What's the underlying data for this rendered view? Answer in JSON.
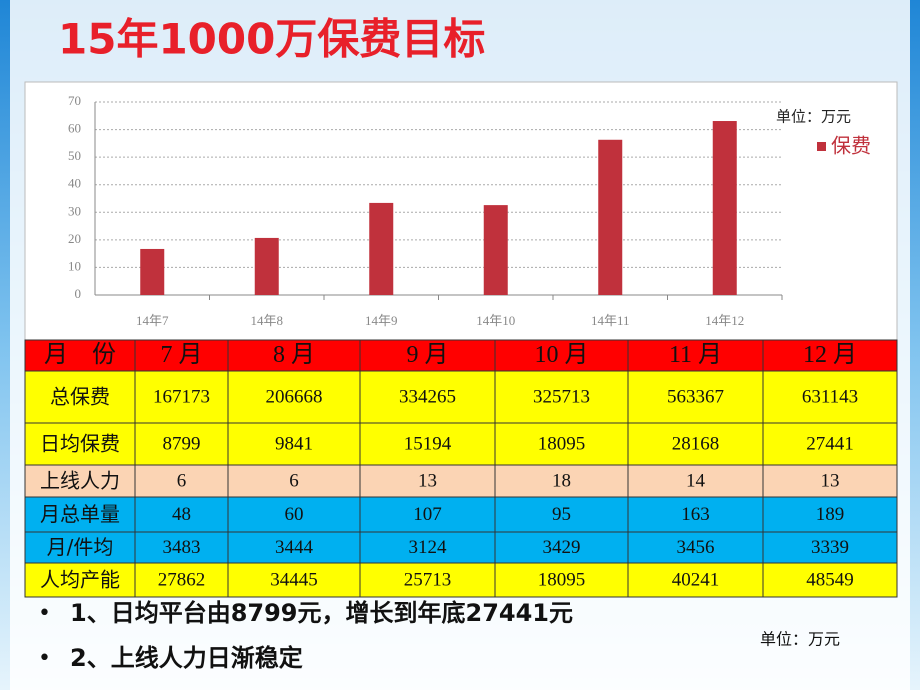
{
  "chart_data": {
    "type": "bar",
    "title": "15年1000万保费目标",
    "unit_label": "单位：万元",
    "categories": [
      "14年7",
      "14年8",
      "14年9",
      "14年10",
      "14年11",
      "14年12"
    ],
    "series": [
      {
        "name": "保费",
        "color": "#c0313c",
        "values": [
          16.7,
          20.7,
          33.4,
          32.6,
          56.3,
          63.1
        ]
      }
    ],
    "ylim": [
      0,
      70
    ],
    "yticks": [
      0,
      10,
      20,
      30,
      40,
      50,
      60,
      70
    ],
    "grid": true,
    "legend": "right"
  },
  "table": {
    "header": [
      "月　份",
      "7 月",
      "8 月",
      "9 月",
      "10 月",
      "11 月",
      "12 月"
    ],
    "rows": [
      [
        "总保费",
        167173,
        206668,
        334265,
        325713,
        563367,
        631143
      ],
      [
        "日均保费",
        8799,
        9841,
        15194,
        18095,
        28168,
        27441
      ],
      [
        "上线人力",
        6,
        6,
        13,
        18,
        14,
        13
      ],
      [
        "月总单量",
        48,
        60,
        107,
        95,
        163,
        189
      ],
      [
        "月/件均",
        3483,
        3444,
        3124,
        3429,
        3456,
        3339
      ],
      [
        "人均产能",
        27862,
        34445,
        25713,
        18095,
        40241,
        48549
      ]
    ]
  },
  "bullets": [
    "1、日均平台由8799元，增长到年底27441元",
    "2、上线人力日渐稳定"
  ],
  "footer_unit": "单位：万元"
}
